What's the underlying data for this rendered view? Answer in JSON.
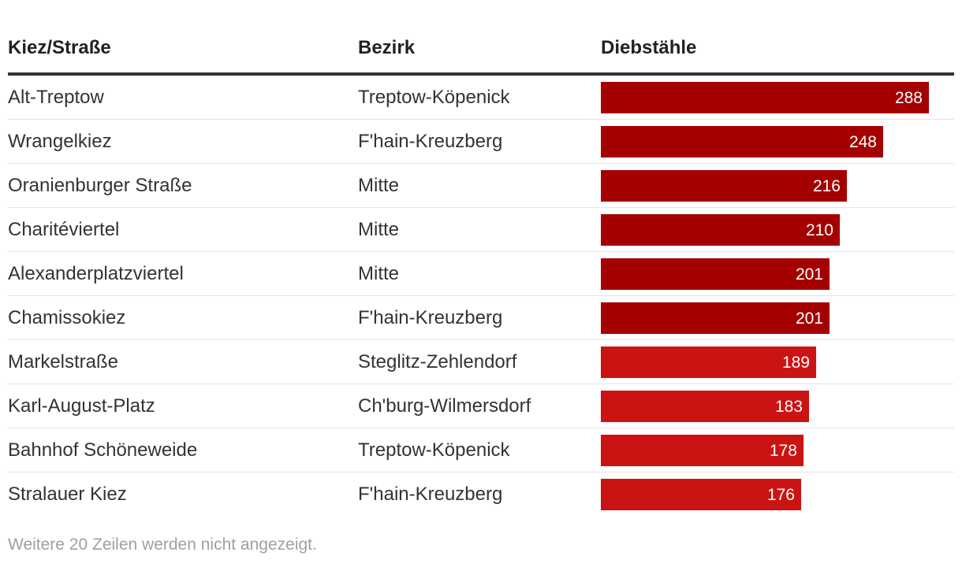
{
  "chart_data": {
    "type": "table",
    "columns": [
      "Kiez/Straße",
      "Bezirk",
      "Diebstähle"
    ],
    "rows": [
      {
        "kiez": "Alt-Treptow",
        "bezirk": "Treptow-Köpenick",
        "value": 288
      },
      {
        "kiez": "Wrangelkiez",
        "bezirk": "F'hain-Kreuzberg",
        "value": 248
      },
      {
        "kiez": "Oranienburger Straße",
        "bezirk": "Mitte",
        "value": 216
      },
      {
        "kiez": "Charitéviertel",
        "bezirk": "Mitte",
        "value": 210
      },
      {
        "kiez": "Alexanderplatzviertel",
        "bezirk": "Mitte",
        "value": 201
      },
      {
        "kiez": "Chamissokiez",
        "bezirk": "F'hain-Kreuzberg",
        "value": 201
      },
      {
        "kiez": "Markelstraße",
        "bezirk": "Steglitz-Zehlendorf",
        "value": 189
      },
      {
        "kiez": "Karl-August-Platz",
        "bezirk": "Ch'burg-Wilmersdorf",
        "value": 183
      },
      {
        "kiez": "Bahnhof Schöneweide",
        "bezirk": "Treptow-Köpenick",
        "value": 178
      },
      {
        "kiez": "Stralauer Kiez",
        "bezirk": "F'hain-Kreuzberg",
        "value": 176
      }
    ],
    "value_max": 288,
    "bar_colors": {
      "high": "#a50000",
      "low": "#cc1313"
    },
    "color_threshold": 200
  },
  "footnote": "Weitere 20 Zeilen werden nicht angezeigt."
}
